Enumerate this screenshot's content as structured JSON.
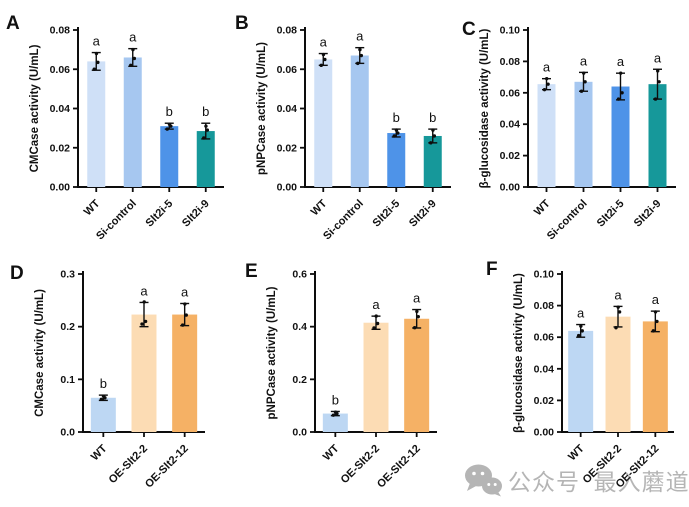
{
  "watermark": {
    "icon": "wechat-icon",
    "color": "#b5b5b5",
    "parts": [
      "公众号",
      "·",
      "最",
      "入",
      "蘑道"
    ]
  },
  "chart_data": [
    {
      "panel_label": "A",
      "type": "bar",
      "title": "",
      "xlabel": "",
      "ylabel": "CMCase activity (U/mL)",
      "categories": [
        "WT",
        "Si-control",
        "Slt2i-5",
        "Slt2i-9"
      ],
      "values": [
        0.064,
        0.066,
        0.031,
        0.0285
      ],
      "errors": [
        0.0045,
        0.0045,
        0.0015,
        0.004
      ],
      "letters": [
        "a",
        "a",
        "b",
        "b"
      ],
      "points": [
        [
          0.06,
          0.0635,
          0.068
        ],
        [
          0.062,
          0.0655,
          0.07
        ],
        [
          0.0295,
          0.031,
          0.032
        ],
        [
          0.025,
          0.029,
          0.031
        ]
      ],
      "bar_colors": [
        "#cfe0f7",
        "#a6c7f0",
        "#4e93e8",
        "#16989a"
      ],
      "ylim": [
        0,
        0.08
      ],
      "yticks": [
        "0.00",
        "0.02",
        "0.04",
        "0.06",
        "0.08"
      ],
      "grid": false,
      "legend": false
    },
    {
      "panel_label": "B",
      "type": "bar",
      "title": "",
      "xlabel": "",
      "ylabel": "pNPCase activity (U/mL)",
      "categories": [
        "WT",
        "Si-control",
        "Slt2i-5",
        "Slt2i-9"
      ],
      "values": [
        0.065,
        0.067,
        0.0275,
        0.026
      ],
      "errors": [
        0.003,
        0.004,
        0.002,
        0.0035
      ],
      "letters": [
        "a",
        "a",
        "b",
        "b"
      ],
      "points": [
        [
          0.062,
          0.065,
          0.0675
        ],
        [
          0.063,
          0.067,
          0.07
        ],
        [
          0.026,
          0.0275,
          0.029
        ],
        [
          0.0225,
          0.026,
          0.029
        ]
      ],
      "bar_colors": [
        "#cfe0f7",
        "#a6c7f0",
        "#4e93e8",
        "#16989a"
      ],
      "ylim": [
        0,
        0.08
      ],
      "yticks": [
        "0.00",
        "0.02",
        "0.04",
        "0.06",
        "0.08"
      ],
      "grid": false,
      "legend": false
    },
    {
      "panel_label": "C",
      "type": "bar",
      "title": "",
      "xlabel": "",
      "ylabel": "β-glucosidase activity (U/mL)",
      "categories": [
        "WT",
        "Si-control",
        "Slt2i-5",
        "Slt2i-9"
      ],
      "values": [
        0.0655,
        0.067,
        0.064,
        0.0655
      ],
      "errors": [
        0.0035,
        0.006,
        0.0085,
        0.0095
      ],
      "letters": [
        "a",
        "a",
        "a",
        "a"
      ],
      "points": [
        [
          0.062,
          0.0655,
          0.069
        ],
        [
          0.061,
          0.067,
          0.0725
        ],
        [
          0.056,
          0.06,
          0.0725
        ],
        [
          0.056,
          0.067,
          0.074
        ]
      ],
      "bar_colors": [
        "#cfe0f7",
        "#a6c7f0",
        "#4e93e8",
        "#16989a"
      ],
      "ylim": [
        0,
        0.1
      ],
      "yticks": [
        "0.00",
        "0.02",
        "0.04",
        "0.06",
        "0.08",
        "0.10"
      ],
      "grid": false,
      "legend": false
    },
    {
      "panel_label": "D",
      "type": "bar",
      "title": "",
      "xlabel": "",
      "ylabel": "CMCase activity (U/mL)",
      "categories": [
        "WT",
        "OE-Slt2-2",
        "OE-Slt2-12"
      ],
      "values": [
        0.065,
        0.223,
        0.223
      ],
      "errors": [
        0.005,
        0.023,
        0.021
      ],
      "letters": [
        "b",
        "a",
        "a"
      ],
      "points": [
        [
          0.062,
          0.065,
          0.068
        ],
        [
          0.205,
          0.21,
          0.247
        ],
        [
          0.203,
          0.222,
          0.243
        ]
      ],
      "bar_colors": [
        "#bdd7f3",
        "#fcdcb4",
        "#f5b165"
      ],
      "ylim": [
        0,
        0.3
      ],
      "yticks": [
        "0.0",
        "0.1",
        "0.2",
        "0.3"
      ],
      "grid": false,
      "legend": false
    },
    {
      "panel_label": "E",
      "type": "bar",
      "title": "",
      "xlabel": "",
      "ylabel": "pNPCase activity (U/mL)",
      "categories": [
        "WT",
        "OE-Slt2-2",
        "OE-Slt2-12"
      ],
      "values": [
        0.07,
        0.415,
        0.43
      ],
      "errors": [
        0.008,
        0.025,
        0.035
      ],
      "letters": [
        "b",
        "a",
        "a"
      ],
      "points": [
        [
          0.064,
          0.07,
          0.075
        ],
        [
          0.395,
          0.412,
          0.44
        ],
        [
          0.396,
          0.438,
          0.458
        ]
      ],
      "bar_colors": [
        "#bdd7f3",
        "#fcdcb4",
        "#f5b165"
      ],
      "ylim": [
        0,
        0.6
      ],
      "yticks": [
        "0.0",
        "0.2",
        "0.4",
        "0.6"
      ],
      "grid": false,
      "legend": false
    },
    {
      "panel_label": "F",
      "type": "bar",
      "title": "",
      "xlabel": "",
      "ylabel": "β-glucosidase activity (U/mL)",
      "categories": [
        "WT",
        "OE-Slt2-2",
        "OE-Slt2-12"
      ],
      "values": [
        0.064,
        0.073,
        0.07
      ],
      "errors": [
        0.004,
        0.0065,
        0.0065
      ],
      "letters": [
        "a",
        "a",
        "a"
      ],
      "points": [
        [
          0.061,
          0.064,
          0.067
        ],
        [
          0.066,
          0.076,
          0.079
        ],
        [
          0.064,
          0.07,
          0.076
        ]
      ],
      "bar_colors": [
        "#bdd7f3",
        "#fcdcb4",
        "#f5b165"
      ],
      "ylim": [
        0,
        0.1
      ],
      "yticks": [
        "0.00",
        "0.02",
        "0.04",
        "0.06",
        "0.08",
        "0.10"
      ],
      "grid": false,
      "legend": false
    }
  ]
}
